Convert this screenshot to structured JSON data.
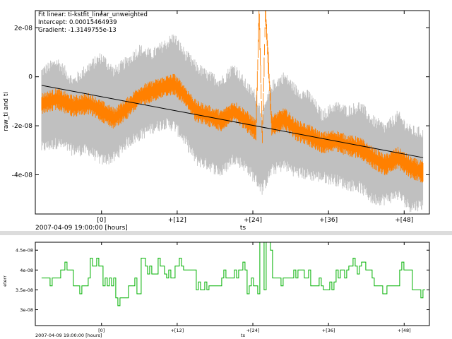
{
  "chart_data": [
    {
      "type": "line",
      "title": "",
      "fit_annotation": {
        "line1": "Fit linear: ti-kstfit_linear_unweighted",
        "line2": "Intercept: 0.00015464939",
        "line3": "Gradient: -1.3149755e-13"
      },
      "xlabel": "ts",
      "ylabel": "raw_ti and ti",
      "time_origin_label": "2007-04-09 19:00:00 [hours]",
      "x_unit": "hours since 2007-04-09 19:00:00",
      "x_ticks": [
        0,
        12,
        24,
        36,
        48
      ],
      "x_tick_labels": [
        "[0]",
        "+[12]",
        "+[24]",
        "+[36]",
        "+[48]"
      ],
      "xlim": [
        -10.5,
        52
      ],
      "y_ticks": [
        2e-08,
        0,
        -2e-08,
        -4e-08
      ],
      "y_tick_labels": [
        "2e-08",
        "0",
        "-2e-08",
        "-4e-08"
      ],
      "ylim": [
        -5.6e-08,
        2.7e-08
      ],
      "series": [
        {
          "name": "raw_ti",
          "color": "#c0c0c0",
          "style": "noisy band",
          "x": [
            -9.5,
            -7,
            -4.5,
            -2,
            0,
            2,
            4,
            6,
            8,
            10,
            11.5,
            13,
            15,
            17,
            19,
            21,
            23,
            24.5,
            25.5,
            27,
            29,
            31,
            33,
            35,
            37,
            39,
            41,
            43,
            45,
            47,
            49,
            51
          ],
          "upper": [
            2e-09,
            6e-09,
            -2e-09,
            4e-09,
            8e-09,
            2e-09,
            6e-09,
            1.1e-08,
            9e-09,
            1.3e-08,
            1.6e-08,
            1e-08,
            4e-09,
            0.0,
            -2e-09,
            4e-09,
            -4e-09,
            -8e-09,
            -1.6e-08,
            -4e-09,
            0.0,
            -6e-09,
            -8e-09,
            -1.6e-08,
            -1.2e-08,
            -1.4e-08,
            -1.2e-08,
            -1.8e-08,
            -2.1e-08,
            -1.6e-08,
            -2.2e-08,
            -2.3e-08
          ],
          "lower": [
            -2.9e-08,
            -2.7e-08,
            -3e-08,
            -3e-08,
            -3.4e-08,
            -3.3e-08,
            -2.7e-08,
            -2.4e-08,
            -2.1e-08,
            -1.9e-08,
            -2e-08,
            -2.5e-08,
            -3.4e-08,
            -3.6e-08,
            -3.9e-08,
            -3.3e-08,
            -3.7e-08,
            -4.2e-08,
            -4.6e-08,
            -3.8e-08,
            -3.6e-08,
            -3.9e-08,
            -4e-08,
            -4.1e-08,
            -4.2e-08,
            -4.4e-08,
            -4.5e-08,
            -5e-08,
            -5e-08,
            -4.8e-08,
            -5.3e-08,
            -5.2e-08
          ]
        },
        {
          "name": "ti",
          "color": "#ff8000",
          "style": "noisy line",
          "x": [
            -9.5,
            -7,
            -4.5,
            -2,
            0,
            2,
            4,
            6,
            8,
            10,
            11.5,
            13,
            15,
            17,
            19,
            21,
            23,
            24.5,
            25,
            25.5,
            26,
            27,
            29,
            31,
            33,
            35,
            37,
            39,
            41,
            43,
            45,
            47,
            49,
            51
          ],
          "center": [
            -1.1e-08,
            -9e-09,
            -1.2e-08,
            -1.1e-08,
            -1.4e-08,
            -1.7e-08,
            -1.3e-08,
            -8e-09,
            -6e-09,
            -4e-09,
            -3e-09,
            -7e-09,
            -1.4e-08,
            -1.6e-08,
            -1.8e-08,
            -1.4e-08,
            -1.8e-08,
            -2.2e-08,
            2.7e-08,
            -2.6e-08,
            2.7e-08,
            -2e-08,
            -1.7e-08,
            -2.2e-08,
            -2.4e-08,
            -2.7e-08,
            -2.6e-08,
            -2.8e-08,
            -2.9e-08,
            -3.3e-08,
            -3.6e-08,
            -3.3e-08,
            -3.7e-08,
            -3.9e-08
          ],
          "noise_amplitude": 9e-09
        },
        {
          "name": "fit",
          "color": "#000000",
          "style": "line",
          "x": [
            -9.5,
            51
          ],
          "y": [
            -3.5e-09,
            -3.3e-08
          ]
        }
      ]
    },
    {
      "type": "line",
      "title": "",
      "xlabel": "ts",
      "ylabel": "eterr",
      "time_origin_label": "2007-04-09 19:00:00 [hours]",
      "x_ticks": [
        0,
        12,
        24,
        36,
        48
      ],
      "x_tick_labels": [
        "[0]",
        "+[12]",
        "+[24]",
        "+[36]",
        "+[48]"
      ],
      "xlim": [
        -10.5,
        52
      ],
      "y_ticks": [
        4.5e-08,
        4e-08,
        3.5e-08,
        3e-08
      ],
      "y_tick_labels": [
        "4.5e-08",
        "4e-08",
        "3.5e-08",
        "3e-08"
      ],
      "ylim": [
        2.6e-08,
        4.7e-08
      ],
      "series": [
        {
          "name": "eterr",
          "color": "#00b000",
          "style": "step",
          "levels": [
            3.1e-08,
            3.3e-08,
            3.5e-08,
            3.6e-08,
            3.8e-08,
            4e-08,
            4.1e-08,
            4.4e-08
          ],
          "x": [
            -9.5,
            -7,
            -4.5,
            -2,
            0,
            2,
            4,
            6,
            8,
            10,
            11.5,
            13,
            15,
            17,
            19,
            21,
            23,
            24.5,
            25,
            25.5,
            26,
            27,
            29,
            31,
            33,
            35,
            37,
            39,
            41,
            43,
            45,
            47,
            49,
            51
          ],
          "y": [
            3.8e-08,
            4e-08,
            3.6e-08,
            4.1e-08,
            3.6e-08,
            3.3e-08,
            3.6e-08,
            4.1e-08,
            4.1e-08,
            3.8e-08,
            4.1e-08,
            4e-08,
            3.5e-08,
            3.6e-08,
            3.8e-08,
            4e-08,
            3.6e-08,
            3.2e-08,
            4.7e-08,
            3.5e-08,
            4.7e-08,
            3.8e-08,
            3.8e-08,
            4e-08,
            3.6e-08,
            3.5e-08,
            4e-08,
            4.1e-08,
            4e-08,
            3.6e-08,
            3.6e-08,
            4e-08,
            3.5e-08,
            3.3e-08
          ]
        }
      ]
    }
  ]
}
